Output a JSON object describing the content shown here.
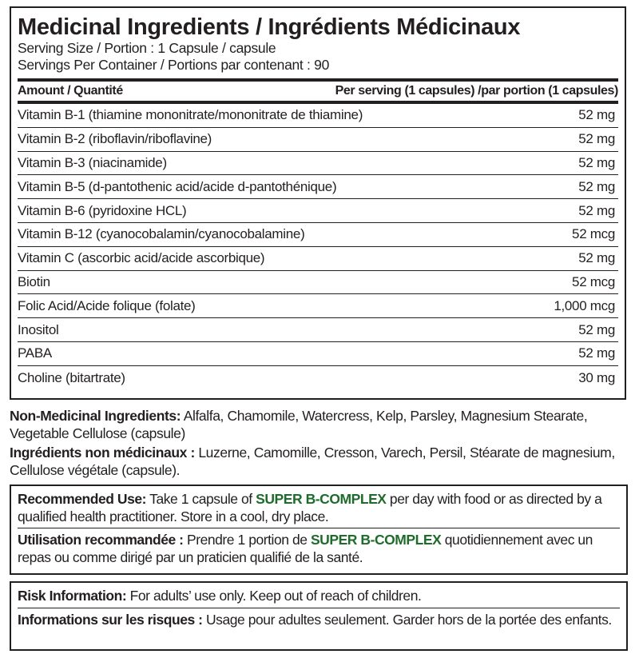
{
  "title": "Medicinal Ingredients / Ingrédients Médicinaux",
  "serving_size": "Serving Size / Portion : 1 Capsule / capsule",
  "servings_per_container": "Servings Per Container / Portions par contenant : 90",
  "table": {
    "header_left": "Amount / Quantité",
    "header_right": "Per serving (1 capsules) /par portion (1 capsules)",
    "rows": [
      {
        "name": "Vitamin B-1 (thiamine mononitrate/mononitrate de thiamine)",
        "amount": "52 mg"
      },
      {
        "name": "Vitamin B-2 (riboflavin/riboflavine)",
        "amount": "52 mg"
      },
      {
        "name": "Vitamin B-3 (niacinamide)",
        "amount": "52 mg"
      },
      {
        "name": "Vitamin B-5 (d-pantothenic acid/acide d-pantothénique)",
        "amount": "52 mg"
      },
      {
        "name": "Vitamin B-6 (pyridoxine HCL)",
        "amount": "52 mg"
      },
      {
        "name": "Vitamin B-12 (cyanocobalamin/cyanocobalamine)",
        "amount": "52 mcg"
      },
      {
        "name": "Vitamin C (ascorbic acid/acide ascorbique)",
        "amount": "52 mg"
      },
      {
        "name": "Biotin",
        "amount": "52 mcg"
      },
      {
        "name": "Folic Acid/Acide folique (folate)",
        "amount": "1,000 mcg"
      },
      {
        "name": "Inositol",
        "amount": "52 mg"
      },
      {
        "name": "PABA",
        "amount": "52 mg"
      },
      {
        "name": "Choline (bitartrate)",
        "amount": "30 mg"
      }
    ]
  },
  "non_medicinal": {
    "en_label": "Non-Medicinal Ingredients:",
    "en_text": " Alfalfa, Chamomile, Watercress, Kelp, Parsley, Magnesium Stearate, Vegetable Cellulose (capsule)",
    "fr_label": "Ingrédients non médicinaux :",
    "fr_text": " Luzerne, Camomille, Cresson, Varech, Persil, Stéarate de magnesium, Cellulose végétale (capsule)."
  },
  "recommended_use": {
    "en_label": "Recommended Use:",
    "en_pre": " Take 1 capsule of ",
    "brand": "SUPER B-COMPLEX",
    "en_post": " per day with food or as directed by a qualified health practitioner. Store in a cool, dry place.",
    "fr_label": "Utilisation recommandée :",
    "fr_pre": " Prendre 1 portion de ",
    "fr_post": " quotidiennement avec un repas ou comme dirigé par un praticien qualifié de la santé."
  },
  "risk": {
    "en_label": "Risk Information:",
    "en_text": " For adults’ use only. Keep out of reach of children.",
    "fr_label": "Informations sur les risques :",
    "fr_text": " Usage pour adultes seulement. Garder hors de la portée des enfants."
  },
  "colors": {
    "brand": "#1f6b2c",
    "text": "#231f20"
  }
}
